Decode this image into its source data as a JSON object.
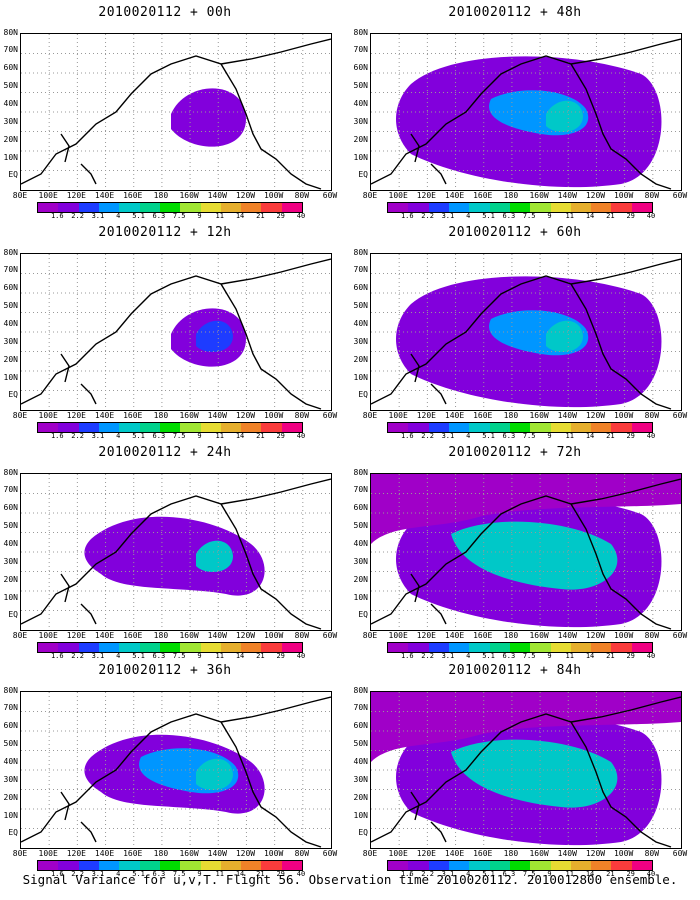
{
  "panels": [
    {
      "title": "2010020112 + 00h",
      "intensity": 0
    },
    {
      "title": "2010020112 + 48h",
      "intensity": 4
    },
    {
      "title": "2010020112 + 12h",
      "intensity": 1
    },
    {
      "title": "2010020112 + 60h",
      "intensity": 5
    },
    {
      "title": "2010020112 + 24h",
      "intensity": 2
    },
    {
      "title": "2010020112 + 72h",
      "intensity": 6
    },
    {
      "title": "2010020112 + 36h",
      "intensity": 3
    },
    {
      "title": "2010020112 + 84h",
      "intensity": 7
    }
  ],
  "lat_labels": [
    "80N",
    "70N",
    "60N",
    "50N",
    "40N",
    "30N",
    "20N",
    "10N",
    "EQ"
  ],
  "lon_labels": [
    "80E",
    "100E",
    "120E",
    "140E",
    "160E",
    "180",
    "160W",
    "140W",
    "120W",
    "100W",
    "80W",
    "60W"
  ],
  "colorbar": {
    "labels": [
      "1.6",
      "2.2",
      "3.1",
      "4",
      "5.1",
      "6.3",
      "7.5",
      "9",
      "11",
      "14",
      "21",
      "29",
      "40"
    ],
    "colors": [
      "#a000c8",
      "#8200dc",
      "#1e3cff",
      "#0096ff",
      "#00c8c8",
      "#00d28c",
      "#00dc00",
      "#a0e632",
      "#e6dc32",
      "#e6af2d",
      "#f08228",
      "#fa3c3c",
      "#f00082"
    ]
  },
  "caption": "Signal Variance for u,v,T. Flight 56. Observation time 2010020112. 2010012800 ensemble."
}
